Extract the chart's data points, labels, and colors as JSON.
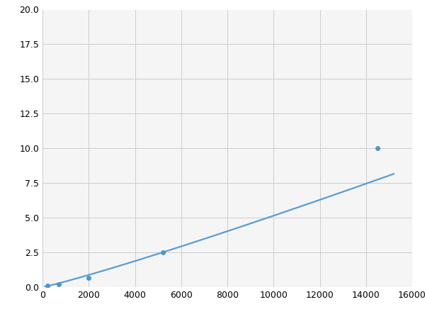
{
  "x": [
    200,
    700,
    2000,
    5200,
    14500
  ],
  "y": [
    0.1,
    0.2,
    0.65,
    2.5,
    10.0
  ],
  "line_color": "#5b9bd5",
  "marker_color": "#4d96c9",
  "marker_size": 5,
  "line_width": 1.6,
  "xlim": [
    0,
    16000
  ],
  "ylim": [
    0,
    20.0
  ],
  "xticks": [
    0,
    2000,
    4000,
    6000,
    8000,
    10000,
    12000,
    14000,
    16000
  ],
  "yticks": [
    0.0,
    2.5,
    5.0,
    7.5,
    10.0,
    12.5,
    15.0,
    17.5,
    20.0
  ],
  "grid_color": "#cccccc",
  "background_color": "#f5f5f5",
  "fig_background": "#ffffff"
}
